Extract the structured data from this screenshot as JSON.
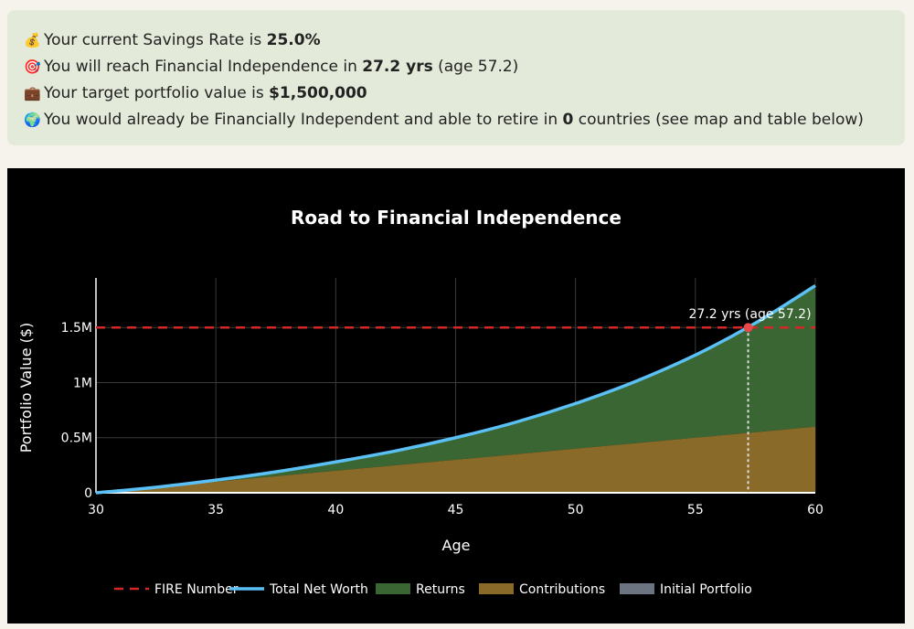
{
  "summary": {
    "savings": {
      "icon": "money-bag-icon",
      "glyph": "💰",
      "prefix": "Your current Savings Rate is ",
      "value": "25.0%",
      "suffix": ""
    },
    "fi_time": {
      "icon": "target-icon",
      "glyph": "🎯",
      "prefix": "You will reach Financial Independence in ",
      "value": "27.2 yrs",
      "suffix": " (age 57.2)"
    },
    "target": {
      "icon": "briefcase-icon",
      "glyph": "💼",
      "prefix": "Your target portfolio value is ",
      "value": "$1,500,000",
      "suffix": ""
    },
    "countries": {
      "icon": "globe-icon",
      "glyph": "🌍",
      "prefix": "You would already be Financially Independent and able to retire in ",
      "value": "0",
      "suffix": " countries (see map and table below)"
    }
  },
  "chart_data": {
    "type": "area",
    "title": "Road to Financial Independence",
    "xlabel": "Age",
    "ylabel": "Portfolio Value ($)",
    "xlim": [
      30,
      60
    ],
    "ylim": [
      0,
      1950000
    ],
    "x_ticks": [
      30,
      35,
      40,
      45,
      50,
      55,
      60
    ],
    "y_ticks": [
      0,
      500000,
      1000000,
      1500000
    ],
    "y_tick_labels": [
      "0",
      "0.5M",
      "1M",
      "1.5M"
    ],
    "grid": true,
    "legend_position": "bottom",
    "x": [
      30,
      32.5,
      35,
      37.5,
      40,
      42.5,
      45,
      47.5,
      50,
      52.5,
      55,
      57.5,
      60
    ],
    "series": [
      {
        "name": "FIRE Number",
        "kind": "hline",
        "value": 1500000,
        "color": "#d62728",
        "dash": true
      },
      {
        "name": "Total Net Worth",
        "kind": "line",
        "color": "#5bc0f5",
        "values": [
          0,
          50000,
          115000,
          190000,
          280000,
          380000,
          500000,
          640000,
          810000,
          1010000,
          1250000,
          1540000,
          1880000
        ]
      },
      {
        "name": "Returns",
        "kind": "area",
        "color": "#3a6633",
        "values": [
          0,
          0,
          15000,
          40000,
          80000,
          130000,
          200000,
          290000,
          410000,
          560000,
          750000,
          990000,
          1280000
        ]
      },
      {
        "name": "Contributions",
        "kind": "area",
        "color": "#8a6a28",
        "values": [
          0,
          50000,
          100000,
          150000,
          200000,
          250000,
          300000,
          350000,
          400000,
          450000,
          500000,
          550000,
          600000
        ]
      },
      {
        "name": "Initial Portfolio",
        "kind": "area",
        "color": "#6b7480",
        "values": [
          0,
          0,
          0,
          0,
          0,
          0,
          0,
          0,
          0,
          0,
          0,
          0,
          0
        ]
      }
    ],
    "annotation": {
      "x": 57.2,
      "y": 1500000,
      "text": "27.2 yrs (age 57.2)"
    }
  }
}
